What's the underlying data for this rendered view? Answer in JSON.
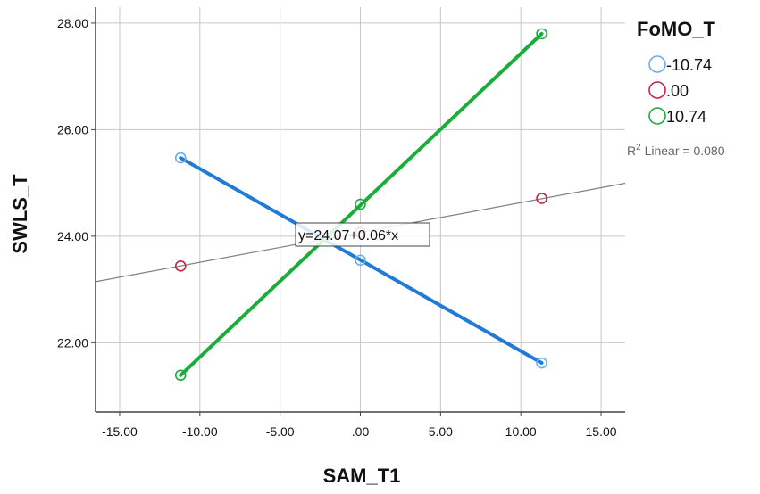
{
  "chart_data": {
    "type": "scatter",
    "xlabel": "SAM_T1",
    "ylabel": "SWLS_T",
    "xlim": [
      -16.5,
      16.5
    ],
    "ylim": [
      20.7,
      28.3
    ],
    "x_ticks": [
      -15,
      -10,
      -5,
      0,
      5,
      10,
      15
    ],
    "x_tick_labels": [
      "-15.00",
      "-10.00",
      "-5.00",
      ".00",
      "5.00",
      "10.00",
      "15.00"
    ],
    "y_ticks": [
      22,
      24,
      26,
      28
    ],
    "y_tick_labels": [
      "22.00",
      "24.00",
      "26.00",
      "28.00"
    ],
    "grid": true,
    "legend": {
      "title": "FoMO_T",
      "placement": "right"
    },
    "series": [
      {
        "name": "-10.74",
        "color": "#1f7bd6",
        "marker_color": "#6aaee8",
        "x": [
          -11.2,
          0,
          11.3
        ],
        "y": [
          25.47,
          23.55,
          21.62
        ]
      },
      {
        "name": ".00",
        "color": "#cc2244",
        "marker_color": "#cc2244",
        "fit": false,
        "x": [
          -11.2,
          0,
          11.3
        ],
        "y": [
          23.44,
          24.07,
          24.71
        ]
      },
      {
        "name": "10.74",
        "color": "#1aad3a",
        "marker_color": "#1aad3a",
        "x": [
          -11.2,
          0,
          11.3
        ],
        "y": [
          21.39,
          24.6,
          27.8
        ]
      }
    ],
    "total_fit": {
      "color": "#808080",
      "intercept": 24.07,
      "slope": 0.056,
      "equation": "y=24.07+0.06*x",
      "r2_prefix": "R",
      "r2_sup": "2",
      "r2_text": " Linear = 0.080"
    }
  }
}
